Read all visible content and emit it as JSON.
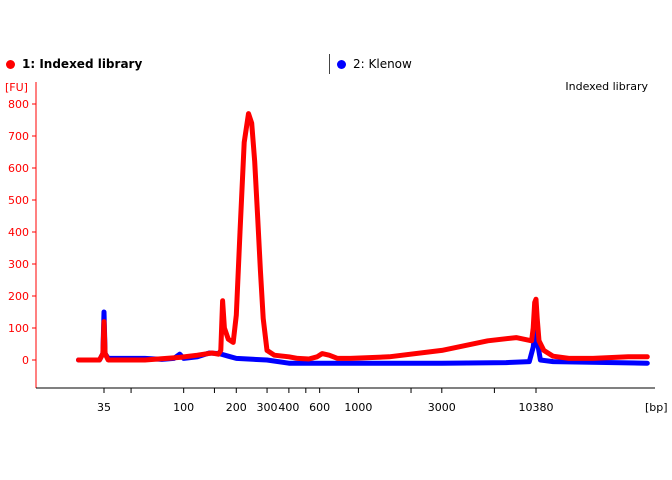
{
  "legend": {
    "items": [
      {
        "label": "1: Indexed library",
        "color": "#ff0000",
        "active": true
      },
      {
        "label": "2: Klenow",
        "color": "#0000ff",
        "active": false
      }
    ]
  },
  "chart_data": {
    "type": "line",
    "title": "Indexed library",
    "ylabel": "[FU]",
    "xlabel": "[bp]",
    "ylim": [
      -90,
      830
    ],
    "y_ticks": [
      0,
      100,
      200,
      300,
      400,
      500,
      600,
      700,
      800
    ],
    "x_scale": "log",
    "x_ticks": [
      35,
      100,
      200,
      300,
      400,
      600,
      1000,
      3000,
      10380
    ],
    "grid": false,
    "series": [
      {
        "name": "1: Indexed library",
        "color": "#ff0000",
        "x": [
          25,
          33,
          34.5,
          35,
          35.5,
          37,
          60,
          95,
          120,
          145,
          158,
          163,
          167,
          171,
          180,
          192,
          200,
          210,
          222,
          235,
          245,
          255,
          265,
          275,
          285,
          300,
          330,
          400,
          450,
          520,
          580,
          620,
          680,
          760,
          900,
          1500,
          3000,
          5500,
          8000,
          9800,
          10000,
          10200,
          10380,
          10550,
          10800,
          11500,
          13000,
          16000,
          22000,
          35000,
          45000
        ],
        "y": [
          0,
          0,
          20,
          120,
          20,
          0,
          0,
          8,
          15,
          22,
          18,
          30,
          185,
          100,
          65,
          55,
          140,
          400,
          680,
          770,
          740,
          620,
          450,
          280,
          130,
          30,
          15,
          10,
          5,
          3,
          10,
          20,
          15,
          5,
          5,
          10,
          30,
          60,
          70,
          60,
          100,
          180,
          190,
          130,
          60,
          30,
          12,
          5,
          5,
          10,
          10
        ]
      },
      {
        "name": "2: Klenow",
        "color": "#0000ff",
        "x": [
          25,
          33,
          34.5,
          35,
          35.5,
          37,
          45,
          60,
          75,
          88,
          95,
          100,
          120,
          140,
          160,
          180,
          200,
          300,
          400,
          600,
          1000,
          3000,
          7000,
          9500,
          10000,
          10200,
          10380,
          10550,
          11000,
          13000,
          45000
        ],
        "y": [
          0,
          0,
          20,
          150,
          20,
          5,
          5,
          5,
          2,
          5,
          18,
          5,
          10,
          22,
          20,
          12,
          5,
          0,
          -10,
          -10,
          -10,
          -10,
          -8,
          -5,
          40,
          80,
          140,
          60,
          0,
          -5,
          -10
        ]
      }
    ]
  }
}
